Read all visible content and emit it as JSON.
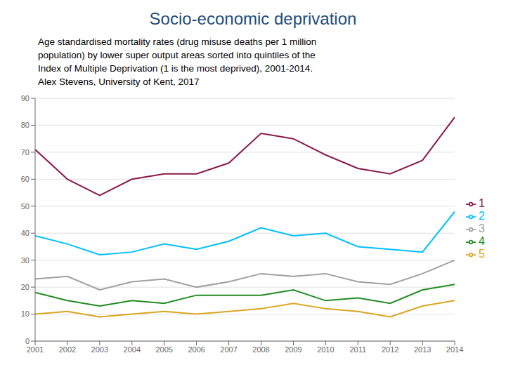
{
  "chart_data": {
    "type": "line",
    "title": "Socio-economic deprivation",
    "subtitle": [
      "Age standardised mortality rates (drug misuse deaths per 1 million",
      "population) by lower super output areas sorted into quintiles of the",
      "Index of Multiple Deprivation (1 is the most deprived), 2001-2014.",
      "Alex Stevens, University of Kent, 2017"
    ],
    "x": [
      2001,
      2002,
      2003,
      2004,
      2005,
      2006,
      2007,
      2008,
      2009,
      2010,
      2011,
      2012,
      2013,
      2014
    ],
    "series": [
      {
        "name": "1",
        "color": "#8B1A4A",
        "values": [
          71,
          60,
          54,
          60,
          62,
          62,
          66,
          77,
          75,
          69,
          64,
          62,
          67,
          83
        ]
      },
      {
        "name": "2",
        "color": "#00BFFF",
        "values": [
          39,
          36,
          32,
          33,
          36,
          34,
          37,
          42,
          39,
          40,
          35,
          34,
          33,
          48
        ]
      },
      {
        "name": "3",
        "color": "#A0A0A0",
        "values": [
          23,
          24,
          19,
          22,
          23,
          20,
          22,
          25,
          24,
          25,
          22,
          21,
          25,
          30
        ]
      },
      {
        "name": "4",
        "color": "#228B22",
        "values": [
          18,
          15,
          13,
          15,
          14,
          17,
          17,
          17,
          19,
          15,
          16,
          14,
          19,
          21
        ]
      },
      {
        "name": "5",
        "color": "#DAA520",
        "values": [
          10,
          11,
          9,
          10,
          11,
          10,
          11,
          12,
          14,
          12,
          11,
          9,
          13,
          15
        ]
      }
    ],
    "xlim": [
      2001,
      2014
    ],
    "xticks": [
      2001,
      2002,
      2003,
      2004,
      2005,
      2006,
      2007,
      2008,
      2009,
      2010,
      2011,
      2012,
      2013,
      2014
    ],
    "ylim": [
      0,
      90
    ],
    "yticks": [
      0,
      10,
      20,
      30,
      40,
      50,
      60,
      70,
      80,
      90
    ],
    "grid": true,
    "legend": "right"
  }
}
